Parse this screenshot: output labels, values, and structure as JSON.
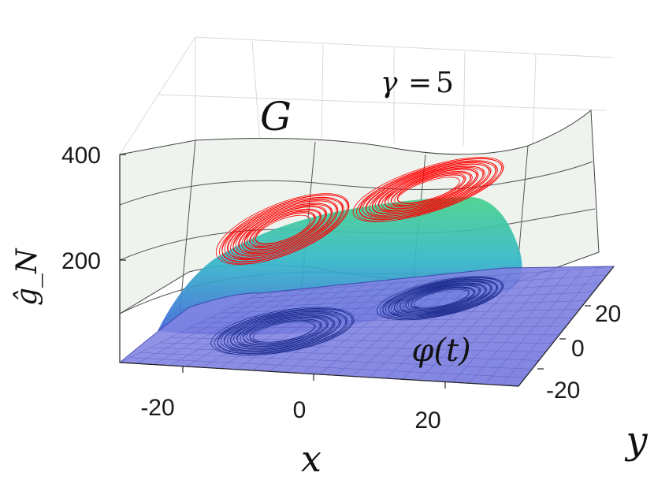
{
  "chart_data": {
    "type": "surface3d",
    "parameter": {
      "symbol": "γ",
      "eq": "=",
      "value": "5"
    },
    "surface_labels": {
      "upper": "G",
      "curve": "φ(t)"
    },
    "axes": {
      "x": {
        "label": "x",
        "ticks": [
          -20,
          0,
          20
        ],
        "range": [
          -30,
          30
        ]
      },
      "y": {
        "label": "y",
        "ticks": [
          20,
          0,
          -20
        ],
        "range": [
          -30,
          30
        ]
      },
      "z": {
        "label": "ĝ_N",
        "ticks": [
          400,
          200
        ],
        "range": [
          0,
          450
        ]
      }
    },
    "grid": true,
    "series": [
      {
        "role": "upper-surface",
        "color": "#e9f0ea"
      },
      {
        "role": "lower-surface",
        "color": "#7d7fe0"
      },
      {
        "role": "attractor-lifted",
        "color": "#ff0000"
      },
      {
        "role": "attractor-projected",
        "color": "#1a237e"
      }
    ]
  }
}
